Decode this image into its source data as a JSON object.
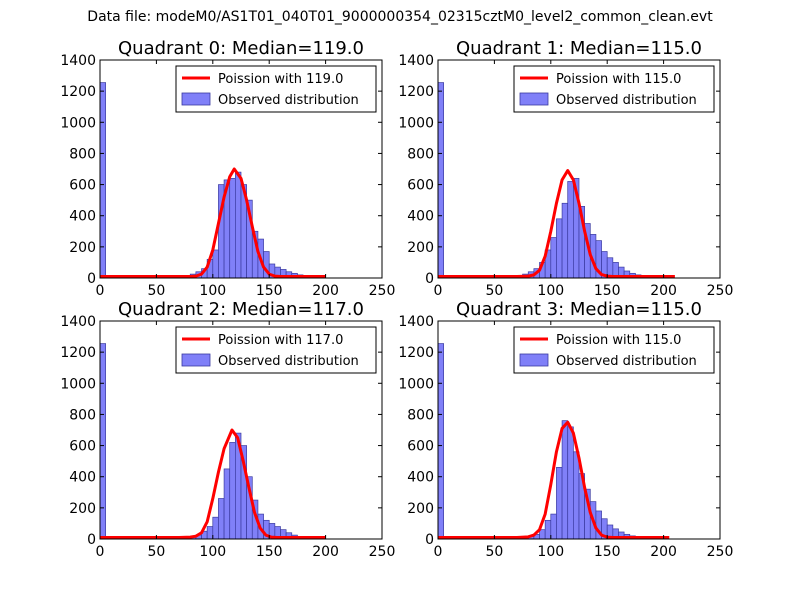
{
  "figure": {
    "suptitle": "Data file: modeM0/AS1T01_040T01_9000000354_02315cztM0_level2_common_clean.evt"
  },
  "colors": {
    "observed_fill": "#8080f8",
    "observed_edge": "#3a3aa0",
    "poisson_line": "#ff0000",
    "axis": "#000000"
  },
  "chart_data": [
    {
      "type": "histogram",
      "title": "Quadrant 0: Median=119.0",
      "xlim": [
        0,
        250
      ],
      "ylim": [
        0,
        1400
      ],
      "xticks": [
        0,
        50,
        100,
        150,
        200,
        250
      ],
      "yticks": [
        0,
        200,
        400,
        600,
        800,
        1000,
        1200,
        1400
      ],
      "legend_position": "upper-right",
      "bin_width": 5,
      "series": [
        {
          "name": "Poission with 119.0",
          "kind": "line",
          "x": [
            0,
            50,
            70,
            80,
            85,
            90,
            95,
            100,
            105,
            110,
            115,
            119,
            125,
            130,
            135,
            140,
            145,
            150,
            155,
            160,
            170,
            200
          ],
          "y": [
            10,
            10,
            10,
            10,
            12,
            25,
            70,
            180,
            350,
            520,
            650,
            700,
            640,
            500,
            330,
            170,
            70,
            25,
            12,
            10,
            10,
            10
          ]
        },
        {
          "name": "Observed distribution",
          "kind": "bars",
          "bins": [
            [
              0,
              1255
            ],
            [
              65,
              3
            ],
            [
              70,
              8
            ],
            [
              75,
              12
            ],
            [
              80,
              25
            ],
            [
              85,
              40
            ],
            [
              90,
              60
            ],
            [
              95,
              120
            ],
            [
              100,
              180
            ],
            [
              105,
              600
            ],
            [
              110,
              630
            ],
            [
              115,
              640
            ],
            [
              120,
              680
            ],
            [
              125,
              600
            ],
            [
              130,
              500
            ],
            [
              135,
              300
            ],
            [
              140,
              250
            ],
            [
              145,
              170
            ],
            [
              150,
              90
            ],
            [
              155,
              70
            ],
            [
              160,
              55
            ],
            [
              165,
              40
            ],
            [
              170,
              30
            ],
            [
              175,
              20
            ],
            [
              180,
              10
            ],
            [
              185,
              5
            ],
            [
              190,
              3
            ]
          ]
        }
      ]
    },
    {
      "type": "histogram",
      "title": "Quadrant 1: Median=115.0",
      "xlim": [
        0,
        250
      ],
      "ylim": [
        0,
        1400
      ],
      "xticks": [
        0,
        50,
        100,
        150,
        200,
        250
      ],
      "yticks": [
        0,
        200,
        400,
        600,
        800,
        1000,
        1200,
        1400
      ],
      "legend_position": "upper-right",
      "bin_width": 5,
      "series": [
        {
          "name": "Poission with 115.0",
          "kind": "line",
          "x": [
            0,
            50,
            70,
            80,
            85,
            90,
            95,
            100,
            105,
            110,
            115,
            120,
            125,
            130,
            135,
            140,
            145,
            150,
            155,
            160,
            170,
            210
          ],
          "y": [
            10,
            10,
            10,
            12,
            20,
            50,
            140,
            300,
            480,
            630,
            690,
            630,
            480,
            300,
            150,
            60,
            22,
            12,
            10,
            10,
            10,
            10
          ]
        },
        {
          "name": "Observed distribution",
          "kind": "bars",
          "bins": [
            [
              0,
              1255
            ],
            [
              60,
              3
            ],
            [
              65,
              8
            ],
            [
              70,
              15
            ],
            [
              75,
              25
            ],
            [
              80,
              40
            ],
            [
              85,
              60
            ],
            [
              90,
              100
            ],
            [
              95,
              180
            ],
            [
              100,
              260
            ],
            [
              105,
              380
            ],
            [
              110,
              480
            ],
            [
              115,
              620
            ],
            [
              120,
              640
            ],
            [
              125,
              460
            ],
            [
              130,
              350
            ],
            [
              135,
              280
            ],
            [
              140,
              240
            ],
            [
              145,
              170
            ],
            [
              150,
              130
            ],
            [
              155,
              100
            ],
            [
              160,
              70
            ],
            [
              165,
              45
            ],
            [
              170,
              30
            ],
            [
              175,
              20
            ],
            [
              180,
              12
            ],
            [
              185,
              6
            ],
            [
              190,
              3
            ]
          ]
        }
      ]
    },
    {
      "type": "histogram",
      "title": "Quadrant 2: Median=117.0",
      "xlim": [
        0,
        250
      ],
      "ylim": [
        0,
        1400
      ],
      "xticks": [
        0,
        50,
        100,
        150,
        200,
        250
      ],
      "yticks": [
        0,
        200,
        400,
        600,
        800,
        1000,
        1200,
        1400
      ],
      "legend_position": "upper-right",
      "bin_width": 5,
      "series": [
        {
          "name": "Poission with 117.0",
          "kind": "line",
          "x": [
            0,
            50,
            70,
            80,
            85,
            90,
            95,
            100,
            105,
            110,
            117,
            122,
            127,
            132,
            137,
            142,
            147,
            152,
            157,
            162,
            170,
            200
          ],
          "y": [
            10,
            10,
            10,
            12,
            18,
            40,
            110,
            260,
            430,
            580,
            700,
            650,
            500,
            330,
            170,
            70,
            25,
            12,
            10,
            10,
            10,
            10
          ]
        },
        {
          "name": "Observed distribution",
          "kind": "bars",
          "bins": [
            [
              0,
              1255
            ],
            [
              65,
              3
            ],
            [
              70,
              6
            ],
            [
              75,
              10
            ],
            [
              80,
              15
            ],
            [
              85,
              25
            ],
            [
              90,
              50
            ],
            [
              95,
              80
            ],
            [
              100,
              140
            ],
            [
              105,
              260
            ],
            [
              110,
              450
            ],
            [
              115,
              620
            ],
            [
              120,
              680
            ],
            [
              125,
              600
            ],
            [
              130,
              400
            ],
            [
              135,
              250
            ],
            [
              140,
              160
            ],
            [
              145,
              120
            ],
            [
              150,
              100
            ],
            [
              155,
              80
            ],
            [
              160,
              60
            ],
            [
              165,
              40
            ],
            [
              170,
              25
            ],
            [
              175,
              15
            ],
            [
              180,
              8
            ],
            [
              185,
              4
            ],
            [
              190,
              2
            ]
          ]
        }
      ]
    },
    {
      "type": "histogram",
      "title": "Quadrant 3: Median=115.0",
      "xlim": [
        0,
        250
      ],
      "ylim": [
        0,
        1400
      ],
      "xticks": [
        0,
        50,
        100,
        150,
        200,
        250
      ],
      "yticks": [
        0,
        200,
        400,
        600,
        800,
        1000,
        1200,
        1400
      ],
      "legend_position": "upper-right",
      "bin_width": 5,
      "series": [
        {
          "name": "Poission with 115.0",
          "kind": "line",
          "x": [
            0,
            50,
            70,
            80,
            85,
            90,
            95,
            100,
            105,
            110,
            115,
            120,
            125,
            130,
            135,
            140,
            145,
            150,
            155,
            160,
            170,
            205
          ],
          "y": [
            10,
            10,
            10,
            14,
            25,
            60,
            160,
            350,
            560,
            710,
            750,
            680,
            520,
            330,
            170,
            70,
            25,
            12,
            10,
            10,
            10,
            10
          ]
        },
        {
          "name": "Observed distribution",
          "kind": "bars",
          "bins": [
            [
              0,
              1255
            ],
            [
              70,
              4
            ],
            [
              75,
              8
            ],
            [
              80,
              15
            ],
            [
              85,
              30
            ],
            [
              90,
              60
            ],
            [
              95,
              120
            ],
            [
              100,
              160
            ],
            [
              105,
              460
            ],
            [
              110,
              760
            ],
            [
              115,
              720
            ],
            [
              120,
              560
            ],
            [
              125,
              420
            ],
            [
              130,
              320
            ],
            [
              135,
              240
            ],
            [
              140,
              180
            ],
            [
              145,
              130
            ],
            [
              150,
              90
            ],
            [
              155,
              65
            ],
            [
              160,
              45
            ],
            [
              165,
              30
            ],
            [
              170,
              20
            ],
            [
              175,
              12
            ],
            [
              180,
              6
            ],
            [
              185,
              3
            ]
          ]
        }
      ]
    }
  ]
}
